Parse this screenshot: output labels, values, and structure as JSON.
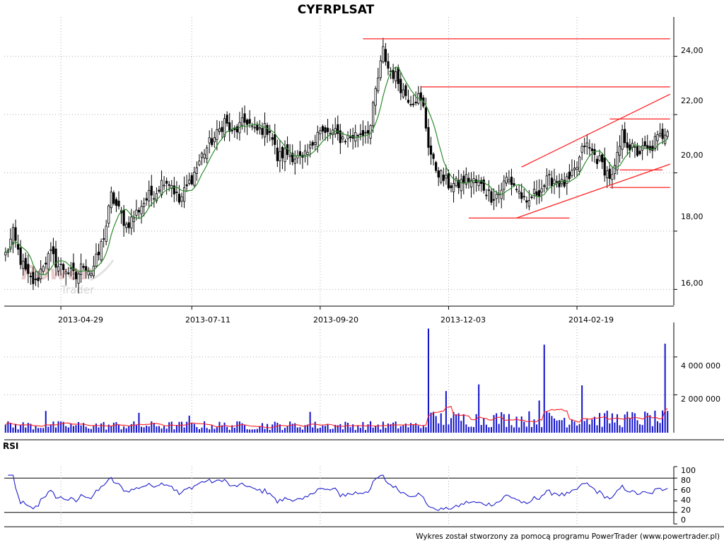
{
  "header": {
    "title": "CYFRPLSAT"
  },
  "footer": {
    "credit": "Wykres został stworzony za pomocą programu PowerTrader (www.powertrader.pl)"
  },
  "watermark": {
    "word1": "Power",
    "word2": "Trader"
  },
  "colors": {
    "candle": "#000000",
    "ma_line": "#2e8b2e",
    "trend_line": "#ff2020",
    "volume_bar": "#1010cc",
    "volume_avg": "#ff2020",
    "rsi_line": "#2020cc",
    "grid": "#b0b0b0",
    "watermark": "#c8c8c8"
  },
  "chart_data": [
    {
      "type": "candlestick",
      "title": "CYFRPLSAT",
      "y_axis": {
        "ticks": [
          16,
          18,
          20,
          22,
          24
        ],
        "tick_labels": [
          "16,00",
          "18,00",
          "20,00",
          "22,00",
          "24,00"
        ],
        "range": [
          15.45,
          25.35
        ]
      },
      "x_axis": {
        "tick_labels": [
          "2013-04-29",
          "2013-07-11",
          "2013-09-20",
          "2013-12-03",
          "2014-02-19"
        ],
        "tick_index": [
          22,
          74,
          125,
          176,
          227
        ],
        "bar_count": 264,
        "first_date": "2013-03-27",
        "last_date": "2014-04-18"
      },
      "close_anchors": [
        [
          0,
          17.2
        ],
        [
          3,
          17.9
        ],
        [
          6,
          17.0
        ],
        [
          9,
          16.4
        ],
        [
          12,
          16.2
        ],
        [
          15,
          16.9
        ],
        [
          18,
          17.2
        ],
        [
          21,
          16.8
        ],
        [
          24,
          16.7
        ],
        [
          28,
          16.4
        ],
        [
          31,
          16.9
        ],
        [
          34,
          16.6
        ],
        [
          37,
          17.2
        ],
        [
          40,
          18.2
        ],
        [
          42,
          19.2
        ],
        [
          45,
          18.7
        ],
        [
          48,
          18.2
        ],
        [
          51,
          18.5
        ],
        [
          54,
          18.9
        ],
        [
          57,
          19.2
        ],
        [
          60,
          19.4
        ],
        [
          63,
          19.8
        ],
        [
          66,
          19.6
        ],
        [
          69,
          19.0
        ],
        [
          72,
          19.5
        ],
        [
          75,
          20.0
        ],
        [
          78,
          20.6
        ],
        [
          81,
          21.0
        ],
        [
          84,
          21.3
        ],
        [
          87,
          21.8
        ],
        [
          90,
          21.3
        ],
        [
          93,
          21.6
        ],
        [
          96,
          21.8
        ],
        [
          99,
          21.4
        ],
        [
          102,
          21.5
        ],
        [
          105,
          21.5
        ],
        [
          108,
          20.5
        ],
        [
          111,
          20.7
        ],
        [
          114,
          20.6
        ],
        [
          118,
          20.4
        ],
        [
          121,
          20.8
        ],
        [
          124,
          21.5
        ],
        [
          127,
          21.3
        ],
        [
          130,
          21.4
        ],
        [
          133,
          21.2
        ],
        [
          136,
          21.2
        ],
        [
          139,
          21.3
        ],
        [
          142,
          21.4
        ],
        [
          145,
          21.6
        ],
        [
          147,
          22.8
        ],
        [
          149,
          23.7
        ],
        [
          150,
          24.2
        ],
        [
          152,
          23.6
        ],
        [
          155,
          23.3
        ],
        [
          158,
          22.8
        ],
        [
          161,
          22.5
        ],
        [
          164,
          22.6
        ],
        [
          166,
          22.2
        ],
        [
          168,
          21.0
        ],
        [
          170,
          20.3
        ],
        [
          173,
          19.9
        ],
        [
          176,
          19.6
        ],
        [
          180,
          19.6
        ],
        [
          183,
          19.8
        ],
        [
          186,
          19.7
        ],
        [
          190,
          19.5
        ],
        [
          193,
          19.2
        ],
        [
          196,
          19.3
        ],
        [
          199,
          19.8
        ],
        [
          202,
          19.6
        ],
        [
          205,
          19.2
        ],
        [
          207,
          18.8
        ],
        [
          209,
          19.2
        ],
        [
          212,
          19.4
        ],
        [
          215,
          19.7
        ],
        [
          218,
          19.8
        ],
        [
          221,
          19.6
        ],
        [
          224,
          19.7
        ],
        [
          227,
          20.2
        ],
        [
          230,
          21.0
        ],
        [
          233,
          20.7
        ],
        [
          236,
          20.4
        ],
        [
          239,
          20.0
        ],
        [
          241,
          19.8
        ],
        [
          243,
          20.5
        ],
        [
          245,
          21.3
        ],
        [
          248,
          20.9
        ],
        [
          251,
          20.7
        ],
        [
          254,
          20.8
        ],
        [
          256,
          20.7
        ],
        [
          258,
          21.1
        ],
        [
          261,
          21.3
        ],
        [
          263,
          21.6
        ]
      ],
      "ma_period": 8,
      "trend_lines": [
        {
          "from": [
            142,
            24.6
          ],
          "to": [
            264,
            24.6
          ]
        },
        {
          "from": [
            165,
            22.95
          ],
          "to": [
            264,
            22.95
          ]
        },
        {
          "from": [
            184,
            18.45
          ],
          "to": [
            224,
            18.45
          ]
        },
        {
          "from": [
            203,
            18.45
          ],
          "to": [
            264,
            20.3
          ]
        },
        {
          "from": [
            205,
            20.2
          ],
          "to": [
            264,
            22.7
          ]
        },
        {
          "from": [
            240,
            21.85
          ],
          "to": [
            264,
            21.85
          ]
        },
        {
          "from": [
            244,
            20.1
          ],
          "to": [
            261,
            20.1
          ]
        },
        {
          "from": [
            240,
            19.5
          ],
          "to": [
            264,
            19.5
          ]
        }
      ]
    },
    {
      "type": "bar",
      "title": "",
      "y_axis": {
        "ticks": [
          2000000,
          4000000
        ],
        "tick_labels": [
          "2 000 000",
          "4 000 000"
        ],
        "range": [
          0,
          5600000
        ]
      },
      "base_level": 400000,
      "spikes": [
        [
          16,
          1150000
        ],
        [
          53,
          1050000
        ],
        [
          73,
          900000
        ],
        [
          121,
          1100000
        ],
        [
          168,
          5500000
        ],
        [
          175,
          2200000
        ],
        [
          188,
          2550000
        ],
        [
          212,
          1700000
        ],
        [
          214,
          4650000
        ],
        [
          229,
          2500000
        ],
        [
          262,
          4700000
        ]
      ],
      "high_period": [
        167,
        264
      ],
      "avg_period": 10
    },
    {
      "type": "line",
      "title": "RSI",
      "y_axis": {
        "ticks": [
          0,
          20,
          40,
          60,
          80,
          100
        ],
        "tick_labels": [
          "0",
          "20",
          "40",
          "60",
          "80",
          "100"
        ],
        "range": [
          0,
          100
        ]
      },
      "reference_lines": [
        20,
        80
      ],
      "period": 14
    }
  ]
}
